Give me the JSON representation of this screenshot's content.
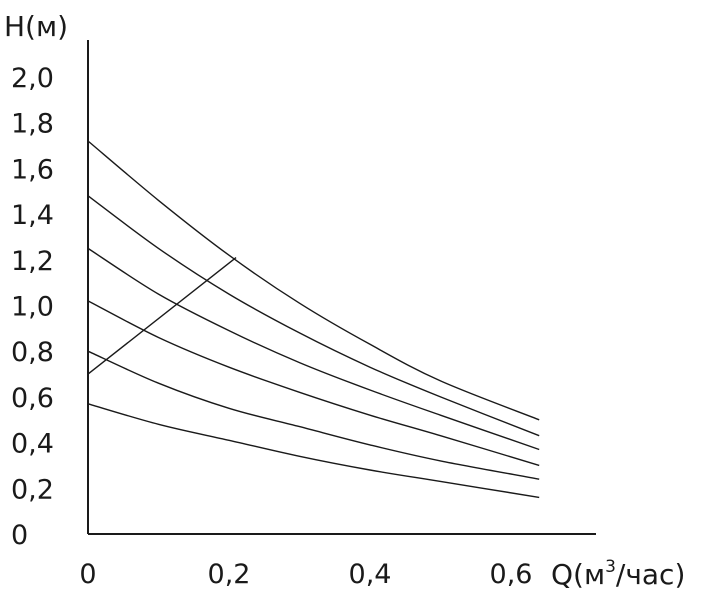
{
  "chart_data": {
    "type": "line",
    "ylabel": "H(м)",
    "xlabel_main": "Q(м",
    "xlabel_sup": "3",
    "xlabel_end": "/час)",
    "xlim": [
      0,
      0.75
    ],
    "ylim": [
      0,
      2.2
    ],
    "x_ticks": [
      "0",
      "0,2",
      "0,4",
      "0,6"
    ],
    "x_tick_values": [
      0,
      0.2,
      0.4,
      0.6
    ],
    "y_ticks": [
      "0",
      "0,2",
      "0,4",
      "0,6",
      "0,8",
      "1,0",
      "1,2",
      "1,4",
      "1,6",
      "1,8",
      "2,0"
    ],
    "y_tick_values": [
      0,
      0.2,
      0.4,
      0.6,
      0.8,
      1.0,
      1.2,
      1.4,
      1.6,
      1.8,
      2.0
    ],
    "grid": false,
    "series": [
      {
        "x": [
          0,
          0.1,
          0.2,
          0.3,
          0.4,
          0.5,
          0.64
        ],
        "values": [
          1.72,
          1.46,
          1.22,
          1.01,
          0.83,
          0.67,
          0.5
        ]
      },
      {
        "x": [
          0,
          0.1,
          0.2,
          0.3,
          0.4,
          0.5,
          0.64
        ],
        "values": [
          1.48,
          1.25,
          1.05,
          0.88,
          0.73,
          0.6,
          0.43
        ]
      },
      {
        "x": [
          0,
          0.1,
          0.2,
          0.3,
          0.4,
          0.5,
          0.64
        ],
        "values": [
          1.25,
          1.05,
          0.89,
          0.75,
          0.63,
          0.52,
          0.37
        ]
      },
      {
        "x": [
          0,
          0.1,
          0.2,
          0.3,
          0.4,
          0.5,
          0.64
        ],
        "values": [
          1.02,
          0.86,
          0.73,
          0.62,
          0.52,
          0.43,
          0.3
        ]
      },
      {
        "x": [
          0,
          0.1,
          0.2,
          0.3,
          0.4,
          0.5,
          0.64
        ],
        "values": [
          0.8,
          0.66,
          0.55,
          0.47,
          0.39,
          0.32,
          0.24
        ]
      },
      {
        "x": [
          0,
          0.1,
          0.2,
          0.3,
          0.4,
          0.5,
          0.64
        ],
        "values": [
          0.57,
          0.48,
          0.41,
          0.34,
          0.28,
          0.23,
          0.16
        ]
      }
    ],
    "max_power_line": {
      "x": [
        0,
        0.21
      ],
      "values": [
        0.7,
        1.21
      ]
    }
  }
}
